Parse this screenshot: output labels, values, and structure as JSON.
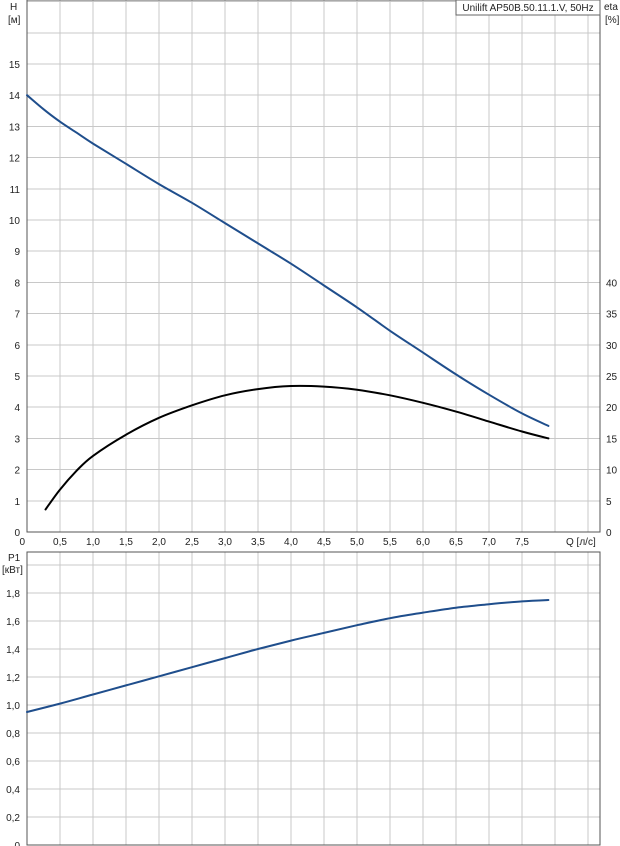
{
  "chart_data": [
    {
      "type": "line",
      "title": "Unilift AP50B.50.11.1.V, 50Hz",
      "xlabel": "Q [л/с]",
      "ylabel": "H\n[м]",
      "y2label": "eta\n[%]",
      "xlim": [
        0,
        8.7
      ],
      "ylim": [
        0,
        16
      ],
      "y2lim": [
        0,
        80
      ],
      "x_ticks": [
        "0",
        "0,5",
        "1,0",
        "1,5",
        "2,0",
        "2,5",
        "3,0",
        "3,5",
        "4,0",
        "4,5",
        "5,0",
        "5,5",
        "6,0",
        "6,5",
        "7,0",
        "7,5"
      ],
      "y_ticks": [
        "0",
        "1",
        "2",
        "3",
        "4",
        "5",
        "6",
        "7",
        "8",
        "9",
        "10",
        "11",
        "12",
        "13",
        "14",
        "15"
      ],
      "y2_ticks": [
        "0",
        "5",
        "10",
        "15",
        "20",
        "25",
        "30",
        "35",
        "40"
      ],
      "grid": true,
      "series": [
        {
          "name": "H",
          "axis": "left",
          "color": "#1f4e8c",
          "x": [
            0,
            0.25,
            0.5,
            0.75,
            1.0,
            1.5,
            2.0,
            2.5,
            3.0,
            3.5,
            4.0,
            4.5,
            5.0,
            5.5,
            6.0,
            6.5,
            7.0,
            7.5,
            7.9
          ],
          "y": [
            14.0,
            13.55,
            13.15,
            12.8,
            12.45,
            11.8,
            11.15,
            10.55,
            9.9,
            9.25,
            8.6,
            7.9,
            7.2,
            6.45,
            5.75,
            5.05,
            4.4,
            3.8,
            3.4
          ]
        },
        {
          "name": "eta",
          "axis": "right",
          "color": "#000000",
          "x": [
            0.28,
            0.5,
            0.75,
            1.0,
            1.5,
            2.0,
            2.5,
            3.0,
            3.5,
            4.0,
            4.5,
            5.0,
            5.5,
            6.0,
            6.5,
            7.0,
            7.5,
            7.9
          ],
          "y": [
            3.6,
            6.8,
            9.8,
            12.2,
            15.6,
            18.3,
            20.3,
            21.9,
            22.9,
            23.4,
            23.3,
            22.8,
            21.9,
            20.7,
            19.3,
            17.7,
            16.1,
            15.0
          ]
        }
      ]
    },
    {
      "type": "line",
      "ylabel": "P1\n[кВт]",
      "xlim": [
        0,
        8.7
      ],
      "ylim": [
        0,
        1.96
      ],
      "y_ticks": [
        "0",
        "0,2",
        "0,4",
        "0,6",
        "0,8",
        "1,0",
        "1,2",
        "1,4",
        "1,6",
        "1,8"
      ],
      "grid": true,
      "series": [
        {
          "name": "P1",
          "color": "#1f4e8c",
          "x": [
            0,
            0.5,
            1.0,
            1.5,
            2.0,
            2.5,
            3.0,
            3.5,
            4.0,
            4.5,
            5.0,
            5.5,
            6.0,
            6.5,
            7.0,
            7.5,
            7.9
          ],
          "y": [
            0.95,
            1.01,
            1.075,
            1.14,
            1.205,
            1.27,
            1.335,
            1.4,
            1.46,
            1.515,
            1.57,
            1.62,
            1.66,
            1.695,
            1.72,
            1.74,
            1.75
          ]
        }
      ]
    }
  ]
}
